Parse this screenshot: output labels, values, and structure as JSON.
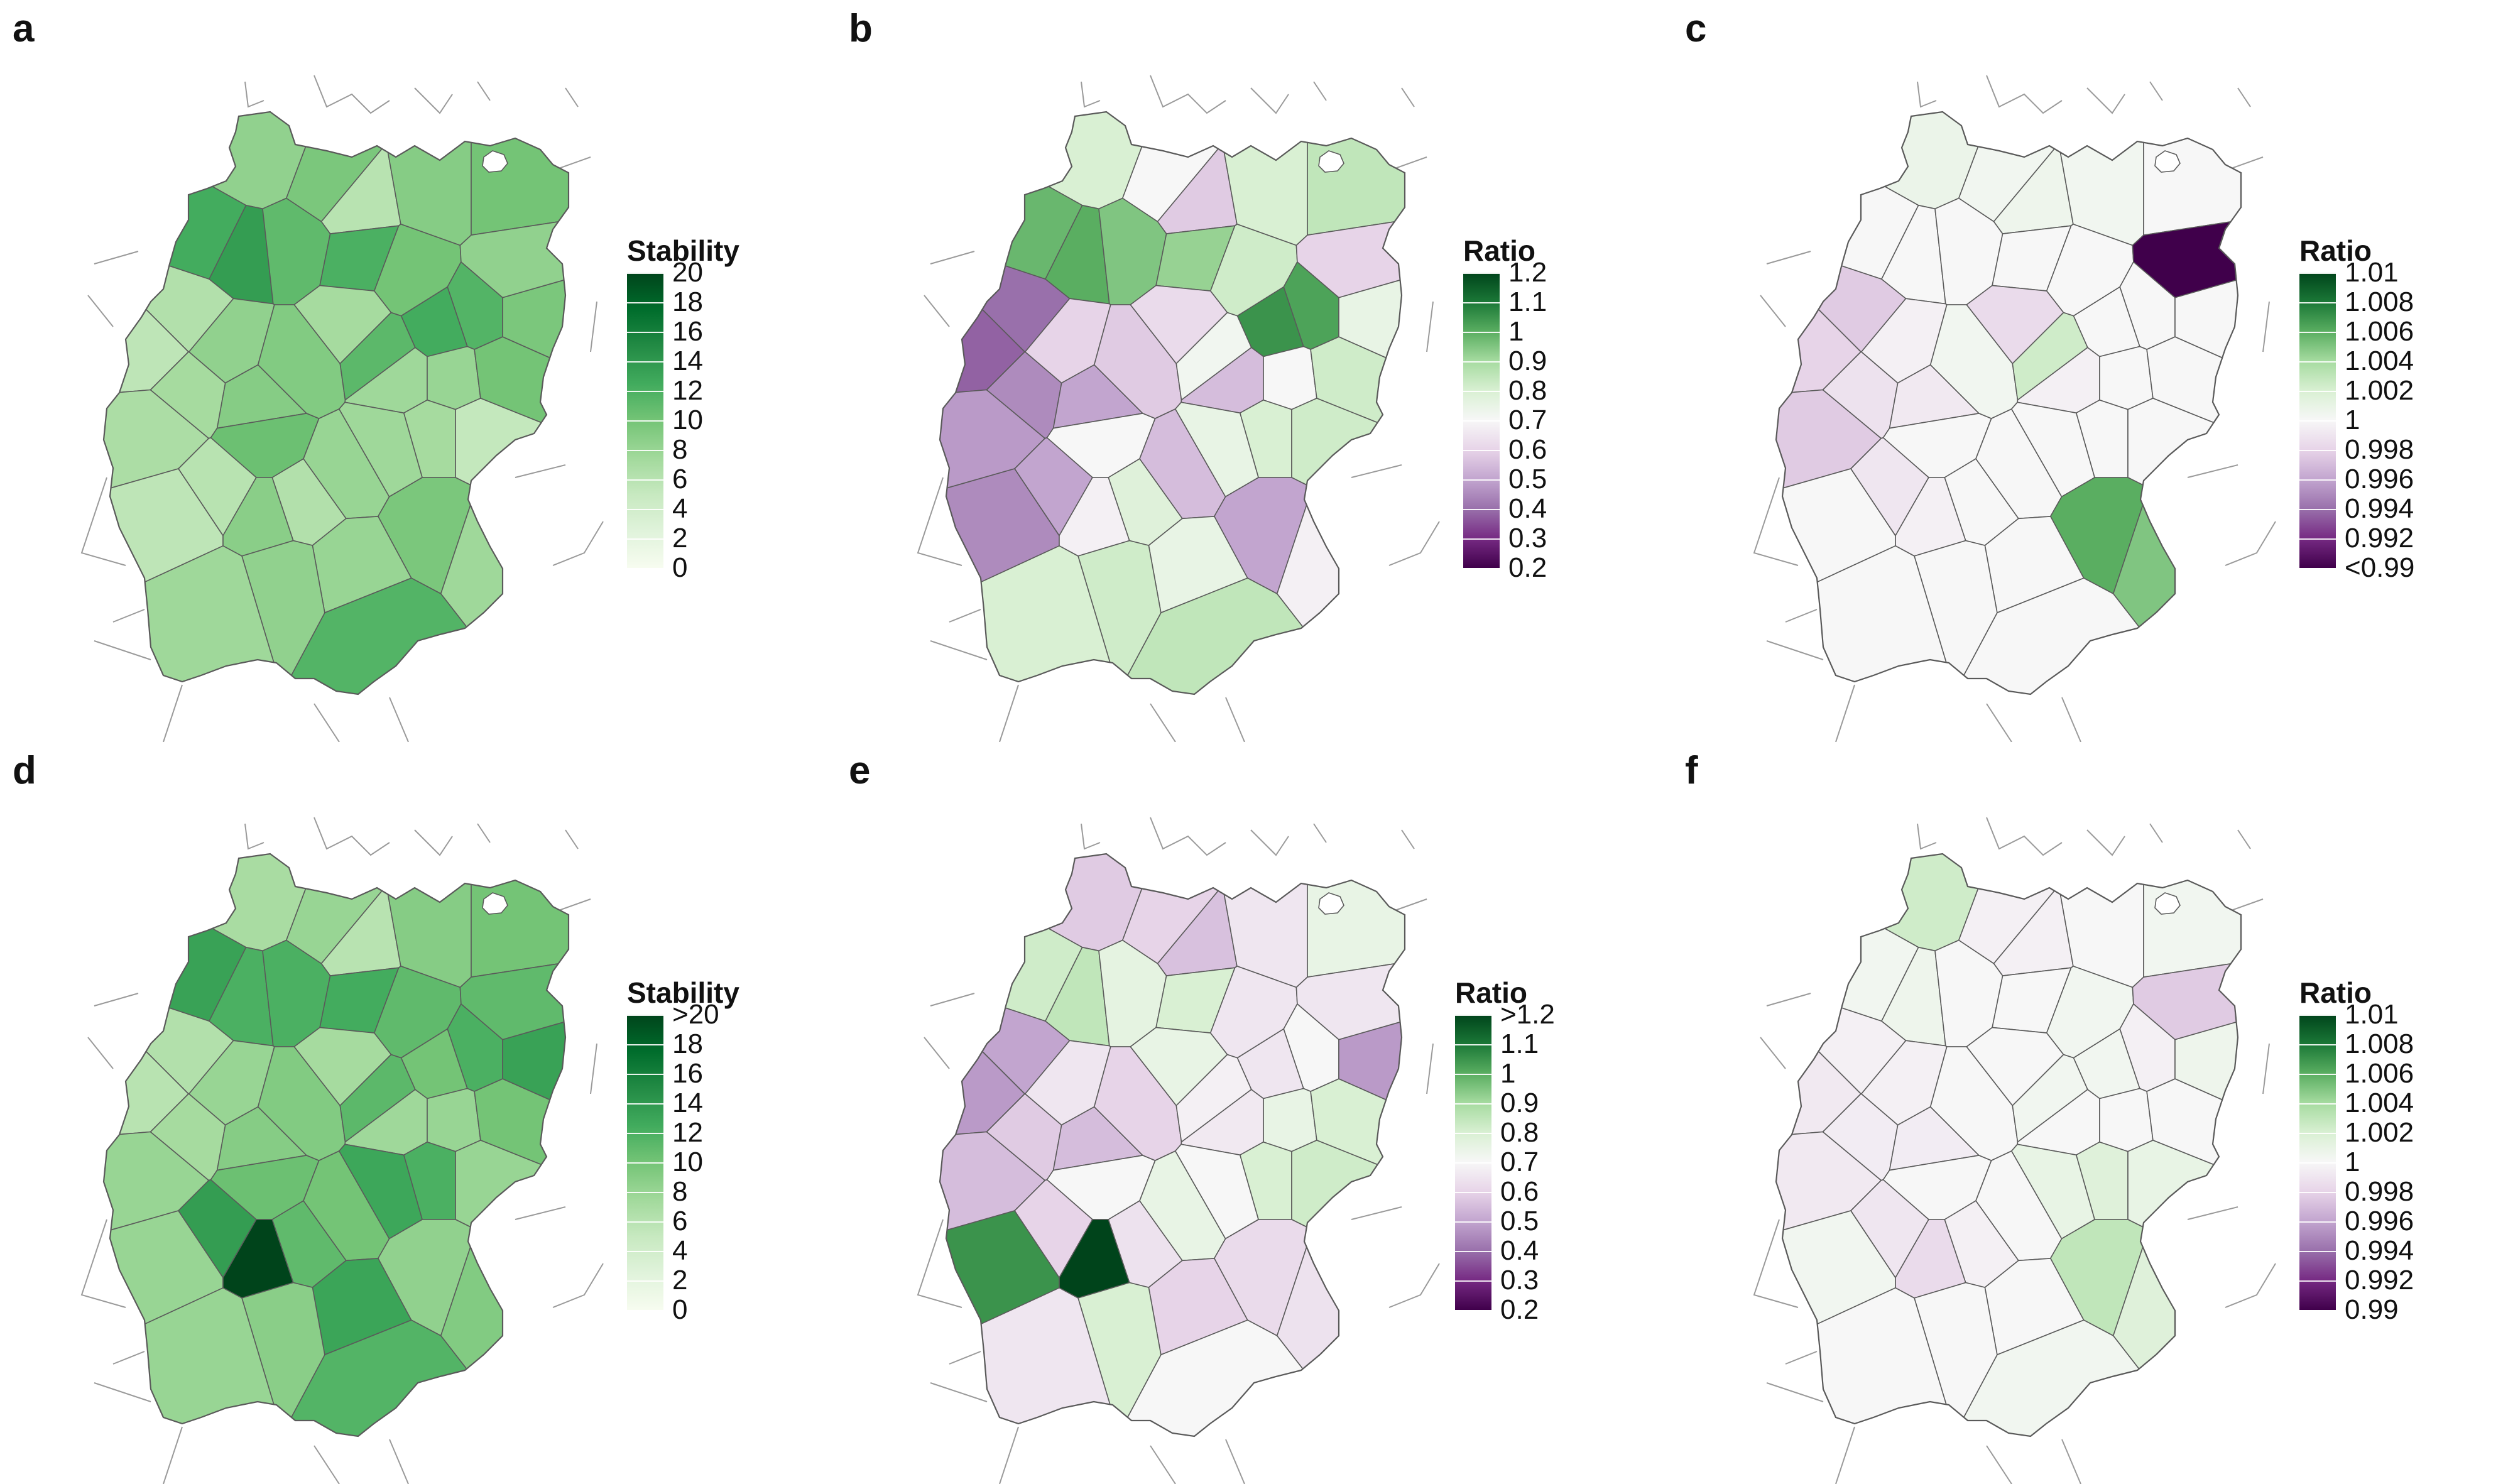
{
  "panels": [
    {
      "letter": "a",
      "legend_title": "Stability",
      "scale": "green",
      "legend_labels": [
        "20",
        "18",
        "16",
        "14",
        "12",
        "10",
        "8",
        "6",
        "4",
        "2",
        "0"
      ],
      "region_values": [
        0.42,
        0.48,
        0.3,
        0.45,
        0.5,
        0.62,
        0.68,
        0.55,
        0.6,
        0.5,
        0.58,
        0.48,
        0.42,
        0.62,
        0.32,
        0.28,
        0.34,
        0.36,
        0.42,
        0.45,
        0.52,
        0.46,
        0.36,
        0.56,
        0.38,
        0.4,
        0.5,
        0.28,
        0.3,
        0.44,
        0.32,
        0.4,
        0.38,
        0.36,
        0.26,
        0.48,
        0.38,
        0.4,
        0.58,
        0.42,
        0.38
      ]
    },
    {
      "letter": "b",
      "legend_title": "Ratio",
      "scale": "diverging",
      "legend_labels": [
        "1.2",
        "1.1",
        "1",
        "0.9",
        "0.8",
        "0.7",
        "0.6",
        "0.5",
        "0.4",
        "0.3",
        "0.2"
      ],
      "region_values": [
        0.6,
        0.5,
        0.38,
        0.6,
        0.65,
        0.78,
        0.8,
        0.75,
        0.72,
        0.62,
        0.82,
        0.55,
        0.4,
        0.85,
        0.2,
        0.18,
        0.28,
        0.25,
        0.4,
        0.3,
        0.5,
        0.38,
        0.42,
        0.52,
        0.35,
        0.5,
        0.62,
        0.25,
        0.3,
        0.48,
        0.58,
        0.35,
        0.55,
        0.6,
        0.62,
        0.3,
        0.48,
        0.55,
        0.65,
        0.62,
        0.6
      ]
    },
    {
      "letter": "c",
      "legend_title": "Ratio",
      "scale": "diverging",
      "legend_labels": [
        "1.01",
        "1.008",
        "1.006",
        "1.004",
        "1.002",
        "1",
        "0.998",
        "0.996",
        "0.994",
        "0.992",
        "<0.99"
      ],
      "region_values": [
        0.54,
        0.52,
        0.53,
        0.52,
        0.5,
        0.5,
        0.5,
        0.5,
        0.5,
        0.5,
        0.5,
        0.5,
        0.0,
        0.5,
        0.38,
        0.4,
        0.38,
        0.44,
        0.48,
        0.46,
        0.5,
        0.52,
        0.42,
        0.62,
        0.48,
        0.5,
        0.5,
        0.5,
        0.45,
        0.48,
        0.5,
        0.5,
        0.5,
        0.5,
        0.5,
        0.8,
        0.75,
        0.5,
        0.5,
        0.5,
        0.5
      ]
    },
    {
      "letter": "d",
      "legend_title": "Stability",
      "scale": "green",
      "legend_labels": [
        ">20",
        "18",
        "16",
        "14",
        "12",
        "10",
        "8",
        "6",
        "4",
        "2",
        "0"
      ],
      "region_values": [
        0.35,
        0.4,
        0.3,
        0.45,
        0.5,
        0.66,
        0.6,
        0.6,
        0.62,
        0.55,
        0.6,
        0.66,
        0.55,
        0.5,
        0.32,
        0.3,
        0.4,
        0.36,
        0.4,
        0.45,
        0.52,
        0.46,
        0.36,
        0.56,
        0.38,
        0.4,
        0.5,
        0.4,
        0.68,
        1.0,
        0.55,
        0.5,
        0.64,
        0.6,
        0.4,
        0.42,
        0.46,
        0.65,
        0.58,
        0.44,
        0.4
      ]
    },
    {
      "letter": "e",
      "legend_title": "Ratio",
      "scale": "diverging",
      "legend_labels": [
        ">1.2",
        "1.1",
        "1",
        "0.9",
        "0.8",
        "0.7",
        "0.6",
        "0.5",
        "0.4",
        "0.3",
        "0.2"
      ],
      "region_values": [
        0.38,
        0.4,
        0.36,
        0.45,
        0.55,
        0.62,
        0.65,
        0.56,
        0.6,
        0.45,
        0.5,
        0.28,
        0.45,
        0.45,
        0.3,
        0.28,
        0.35,
        0.38,
        0.45,
        0.35,
        0.5,
        0.4,
        0.55,
        0.48,
        0.46,
        0.55,
        0.6,
        0.85,
        0.4,
        1.0,
        0.44,
        0.55,
        0.5,
        0.6,
        0.62,
        0.42,
        0.44,
        0.4,
        0.5,
        0.6,
        0.45
      ]
    },
    {
      "letter": "f",
      "legend_title": "Ratio",
      "scale": "diverging",
      "legend_labels": [
        "1.01",
        "1.008",
        "1.006",
        "1.004",
        "1.002",
        "1",
        "0.998",
        "0.996",
        "0.994",
        "0.992",
        "0.99"
      ],
      "region_values": [
        0.62,
        0.48,
        0.48,
        0.5,
        0.52,
        0.52,
        0.53,
        0.5,
        0.5,
        0.52,
        0.48,
        0.53,
        0.38,
        0.52,
        0.48,
        0.46,
        0.46,
        0.47,
        0.48,
        0.47,
        0.5,
        0.5,
        0.5,
        0.52,
        0.5,
        0.5,
        0.5,
        0.52,
        0.45,
        0.42,
        0.48,
        0.5,
        0.55,
        0.58,
        0.55,
        0.65,
        0.58,
        0.5,
        0.52,
        0.5,
        0.5
      ]
    }
  ],
  "colors": {
    "green": [
      "#f7fcf0",
      "#e0f3db",
      "#c7e9c0",
      "#a1d99b",
      "#74c476",
      "#41ab5d",
      "#238b45",
      "#006d2c",
      "#00441b"
    ],
    "diverging": [
      "#40004b",
      "#762a83",
      "#9970ab",
      "#c2a5cf",
      "#e7d4e8",
      "#f7f7f7",
      "#d9f0d3",
      "#a6dba0",
      "#5aae61",
      "#1b7837",
      "#00441b"
    ],
    "boundary": "#5a5a5a",
    "context_lines": "#9a9a9a"
  }
}
